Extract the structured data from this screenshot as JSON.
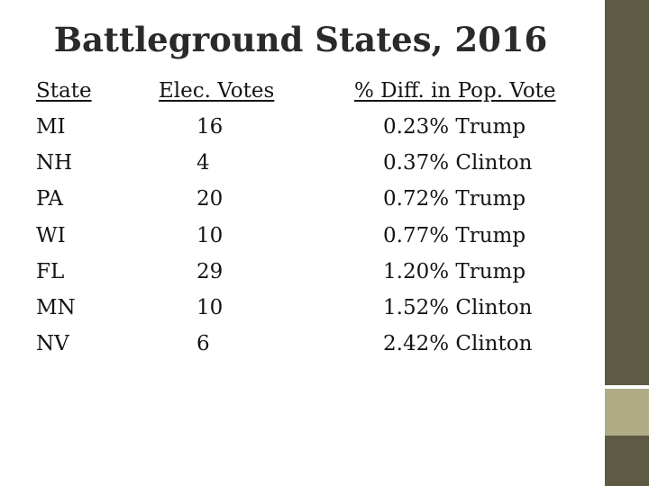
{
  "slide": {
    "title": "Battleground States, 2016"
  },
  "table": {
    "headers": {
      "state": "State",
      "votes": "Elec. Votes",
      "diff": "% Diff. in Pop. Vote"
    },
    "rows": [
      {
        "state": "MI",
        "votes": "16",
        "diff": "0.23% Trump",
        "winner": "Trump"
      },
      {
        "state": "NH",
        "votes": "4",
        "diff": "0.37% Clinton",
        "winner": "Clinton"
      },
      {
        "state": "PA",
        "votes": "20",
        "diff": "0.72% Trump",
        "winner": "Trump"
      },
      {
        "state": "WI",
        "votes": "10",
        "diff": "0.77% Trump",
        "winner": "Trump"
      },
      {
        "state": "FL",
        "votes": "29",
        "diff": "1.20% Trump",
        "winner": "Trump"
      },
      {
        "state": "MN",
        "votes": "10",
        "diff": "1.52% Clinton",
        "winner": "Clinton"
      },
      {
        "state": "NV",
        "votes": "6",
        "diff": "2.42% Clinton",
        "winner": "Clinton"
      }
    ]
  },
  "colors": {
    "sidebar": "#5f5a44",
    "sidebar_accent": "#b0ad86",
    "text": "#141414"
  }
}
